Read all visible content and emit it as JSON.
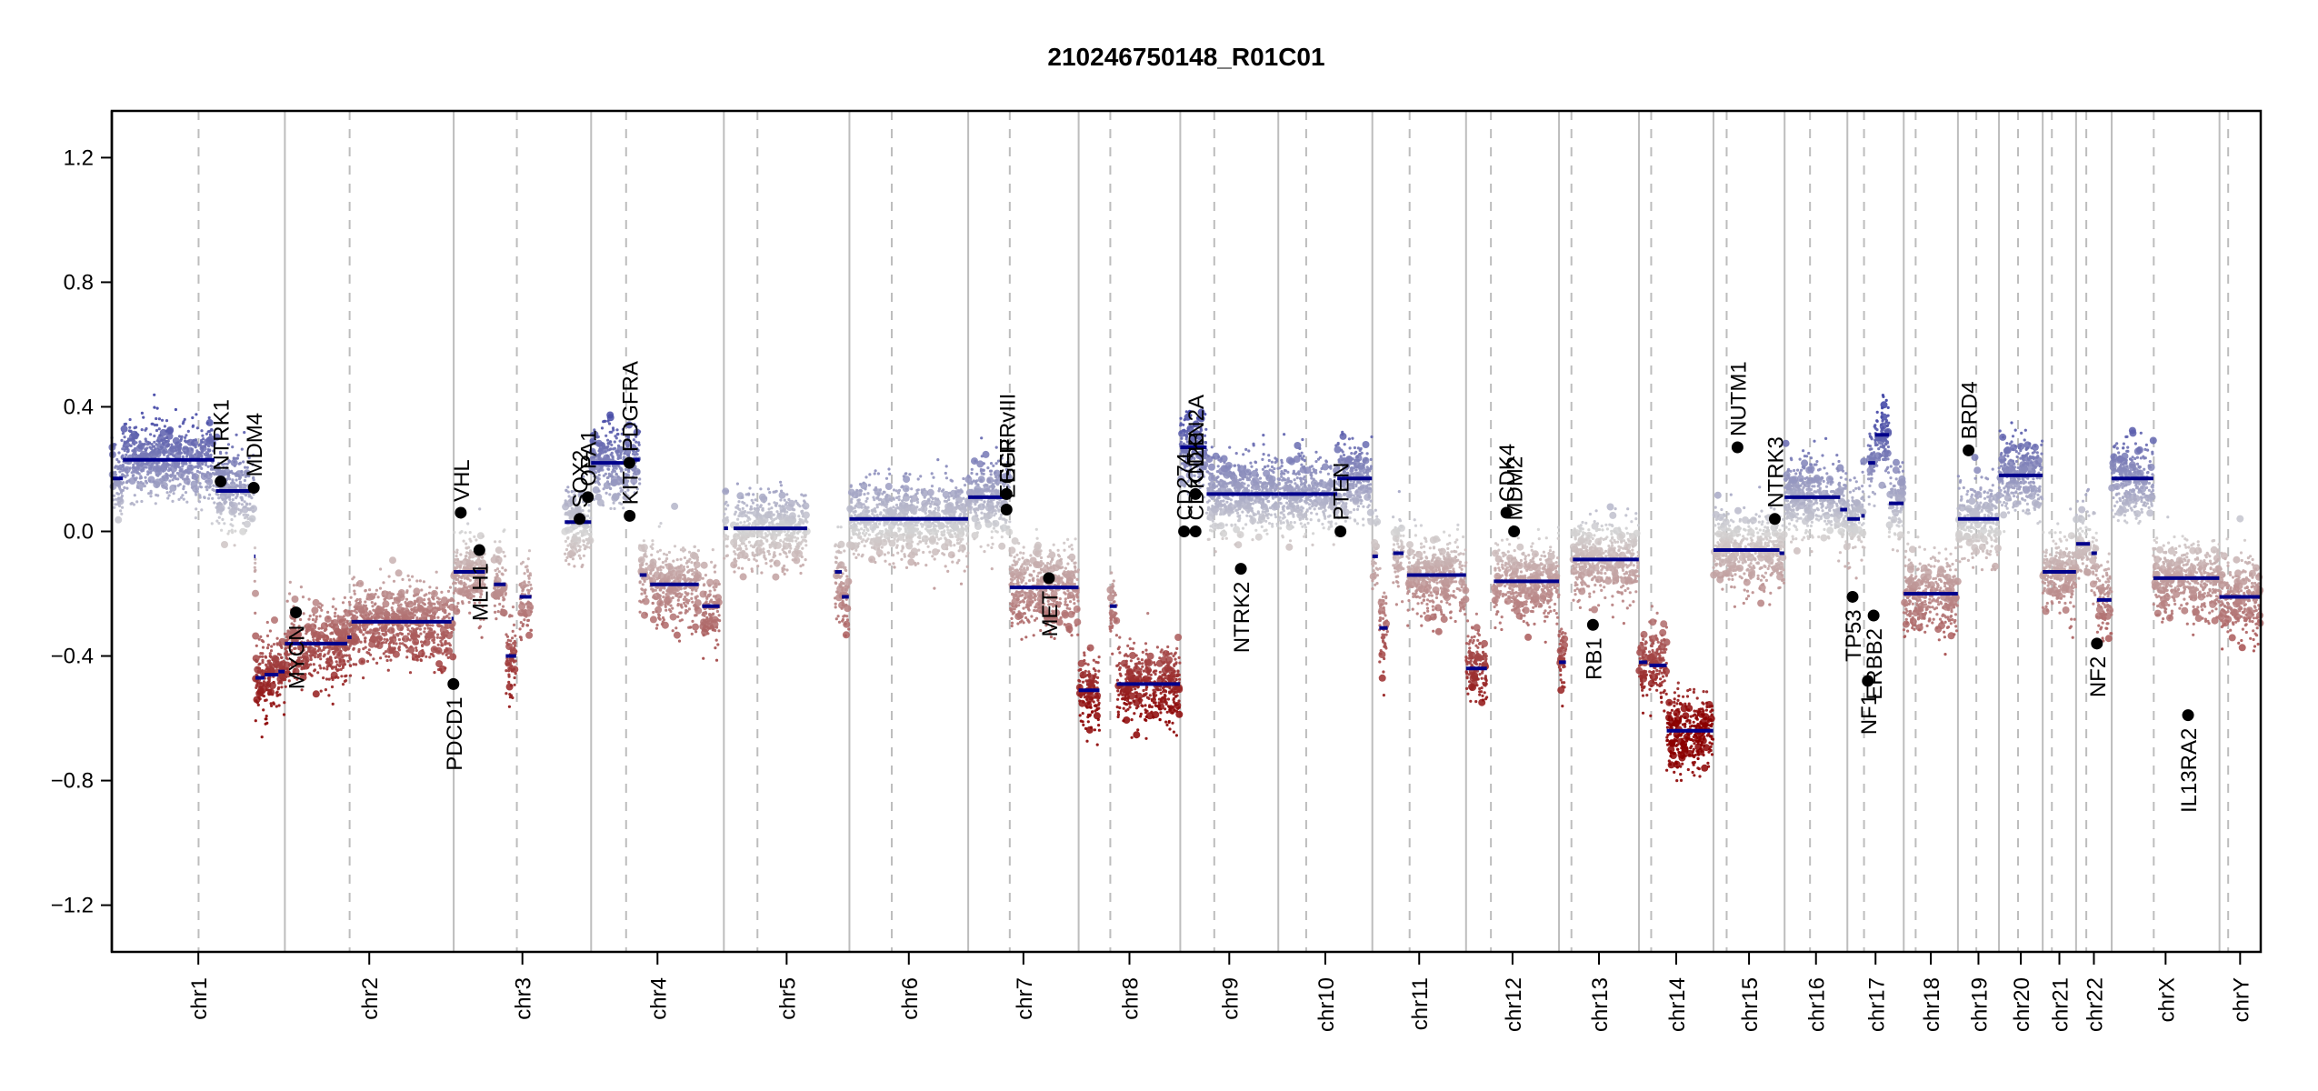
{
  "chart_data": {
    "type": "scatter",
    "title": "210246750148_R01C01",
    "xlabel": "",
    "ylabel": "",
    "ylim": [
      -1.35,
      1.35
    ],
    "yticks": [
      -1.2,
      -0.8,
      -0.4,
      0.0,
      0.4,
      0.8,
      1.2
    ],
    "ytick_labels": [
      "−1.2",
      "−0.8",
      "−0.4",
      "0.0",
      "0.4",
      "0.8",
      "1.2"
    ],
    "grid": false,
    "legend": "none",
    "colors": {
      "gain": "#3b3fa3",
      "neutral": "#d3d3d3",
      "loss": "#8b0000",
      "segment": "#00008b",
      "gene_marker": "#000000",
      "chrom_boundary": "#bdbdbd",
      "centromere": "#bdbdbd"
    },
    "chromosomes": [
      {
        "name": "chr1",
        "length": 249.3,
        "centromere": 125.0
      },
      {
        "name": "chr2",
        "length": 243.2,
        "centromere": 93.3
      },
      {
        "name": "chr3",
        "length": 198.0,
        "centromere": 91.0
      },
      {
        "name": "chr4",
        "length": 191.2,
        "centromere": 50.4
      },
      {
        "name": "chr5",
        "length": 180.9,
        "centromere": 48.4
      },
      {
        "name": "chr6",
        "length": 171.1,
        "centromere": 61.0
      },
      {
        "name": "chr7",
        "length": 159.1,
        "centromere": 59.9
      },
      {
        "name": "chr8",
        "length": 146.4,
        "centromere": 45.6
      },
      {
        "name": "chr9",
        "length": 141.2,
        "centromere": 49.0
      },
      {
        "name": "chr10",
        "length": 135.5,
        "centromere": 40.2
      },
      {
        "name": "chr11",
        "length": 135.0,
        "centromere": 53.7
      },
      {
        "name": "chr12",
        "length": 133.9,
        "centromere": 35.8
      },
      {
        "name": "chr13",
        "length": 115.2,
        "centromere": 17.9
      },
      {
        "name": "chr14",
        "length": 107.3,
        "centromere": 17.6
      },
      {
        "name": "chr15",
        "length": 102.5,
        "centromere": 19.0
      },
      {
        "name": "chr16",
        "length": 90.4,
        "centromere": 36.6
      },
      {
        "name": "chr17",
        "length": 81.2,
        "centromere": 24.0
      },
      {
        "name": "chr18",
        "length": 78.1,
        "centromere": 17.2
      },
      {
        "name": "chr19",
        "length": 59.1,
        "centromere": 26.5
      },
      {
        "name": "chr20",
        "length": 63.0,
        "centromere": 27.5
      },
      {
        "name": "chr21",
        "length": 48.1,
        "centromere": 13.2
      },
      {
        "name": "chr22",
        "length": 51.3,
        "centromere": 14.7
      },
      {
        "name": "chrX",
        "length": 155.3,
        "centromere": 60.6
      },
      {
        "name": "chrY",
        "length": 59.4,
        "centromere": 12.5
      }
    ],
    "segments": [
      {
        "chrom": "chr1",
        "start": 0,
        "end": 16,
        "value": 0.17
      },
      {
        "chrom": "chr1",
        "start": 16,
        "end": 148,
        "value": 0.23
      },
      {
        "chrom": "chr1",
        "start": 150,
        "end": 205,
        "value": 0.13
      },
      {
        "chrom": "chr1",
        "start": 205,
        "end": 207,
        "value": -0.08
      },
      {
        "chrom": "chr1",
        "start": 207,
        "end": 220,
        "value": -0.47
      },
      {
        "chrom": "chr1",
        "start": 220,
        "end": 240,
        "value": -0.46
      },
      {
        "chrom": "chr1",
        "start": 240,
        "end": 249,
        "value": -0.45
      },
      {
        "chrom": "chr2",
        "start": 0,
        "end": 90,
        "value": -0.36
      },
      {
        "chrom": "chr2",
        "start": 90,
        "end": 96,
        "value": -0.34
      },
      {
        "chrom": "chr2",
        "start": 96,
        "end": 240,
        "value": -0.29
      },
      {
        "chrom": "chr2",
        "start": 240,
        "end": 243,
        "value": -0.28
      },
      {
        "chrom": "chr3",
        "start": 0,
        "end": 45,
        "value": -0.13
      },
      {
        "chrom": "chr3",
        "start": 58,
        "end": 75,
        "value": -0.17
      },
      {
        "chrom": "chr3",
        "start": 75,
        "end": 90,
        "value": -0.4
      },
      {
        "chrom": "chr3",
        "start": 95,
        "end": 112,
        "value": -0.21
      },
      {
        "chrom": "chr3",
        "start": 160,
        "end": 198,
        "value": 0.03
      },
      {
        "chrom": "chr4",
        "start": 0,
        "end": 55,
        "value": 0.22
      },
      {
        "chrom": "chr4",
        "start": 60,
        "end": 70,
        "value": 0.23
      },
      {
        "chrom": "chr4",
        "start": 70,
        "end": 80,
        "value": -0.14
      },
      {
        "chrom": "chr4",
        "start": 85,
        "end": 155,
        "value": -0.17
      },
      {
        "chrom": "chr4",
        "start": 160,
        "end": 185,
        "value": -0.24
      },
      {
        "chrom": "chr5",
        "start": 0,
        "end": 6,
        "value": 0.01
      },
      {
        "chrom": "chr5",
        "start": 14,
        "end": 120,
        "value": 0.01
      },
      {
        "chrom": "chr5",
        "start": 160,
        "end": 170,
        "value": -0.13
      },
      {
        "chrom": "chr5",
        "start": 170,
        "end": 180,
        "value": -0.21
      },
      {
        "chrom": "chr6",
        "start": 0,
        "end": 171,
        "value": 0.04
      },
      {
        "chrom": "chr7",
        "start": 0,
        "end": 60,
        "value": 0.11
      },
      {
        "chrom": "chr7",
        "start": 60,
        "end": 159,
        "value": -0.18
      },
      {
        "chrom": "chr8",
        "start": 0,
        "end": 30,
        "value": -0.51
      },
      {
        "chrom": "chr8",
        "start": 45,
        "end": 55,
        "value": -0.24
      },
      {
        "chrom": "chr8",
        "start": 55,
        "end": 146,
        "value": -0.49
      },
      {
        "chrom": "chr9",
        "start": 0,
        "end": 38,
        "value": 0.27
      },
      {
        "chrom": "chr9",
        "start": 38,
        "end": 141,
        "value": 0.12
      },
      {
        "chrom": "chr10",
        "start": 0,
        "end": 85,
        "value": 0.12
      },
      {
        "chrom": "chr10",
        "start": 85,
        "end": 135,
        "value": 0.17
      },
      {
        "chrom": "chr11",
        "start": 0,
        "end": 8,
        "value": -0.08
      },
      {
        "chrom": "chr11",
        "start": 10,
        "end": 22,
        "value": -0.31
      },
      {
        "chrom": "chr11",
        "start": 30,
        "end": 45,
        "value": -0.07
      },
      {
        "chrom": "chr11",
        "start": 50,
        "end": 135,
        "value": -0.14
      },
      {
        "chrom": "chr12",
        "start": 0,
        "end": 30,
        "value": -0.44
      },
      {
        "chrom": "chr12",
        "start": 40,
        "end": 134,
        "value": -0.16
      },
      {
        "chrom": "chr13",
        "start": 0,
        "end": 10,
        "value": -0.42
      },
      {
        "chrom": "chr13",
        "start": 20,
        "end": 115,
        "value": -0.09
      },
      {
        "chrom": "chr14",
        "start": 0,
        "end": 12,
        "value": -0.42
      },
      {
        "chrom": "chr14",
        "start": 15,
        "end": 40,
        "value": -0.43
      },
      {
        "chrom": "chr14",
        "start": 40,
        "end": 107,
        "value": -0.64
      },
      {
        "chrom": "chr15",
        "start": 0,
        "end": 95,
        "value": -0.06
      },
      {
        "chrom": "chr15",
        "start": 95,
        "end": 102,
        "value": -0.07
      },
      {
        "chrom": "chr16",
        "start": 0,
        "end": 80,
        "value": 0.11
      },
      {
        "chrom": "chr16",
        "start": 80,
        "end": 90,
        "value": 0.07
      },
      {
        "chrom": "chr17",
        "start": 0,
        "end": 18,
        "value": 0.04
      },
      {
        "chrom": "chr17",
        "start": 20,
        "end": 25,
        "value": 0.05
      },
      {
        "chrom": "chr17",
        "start": 30,
        "end": 40,
        "value": 0.22
      },
      {
        "chrom": "chr17",
        "start": 40,
        "end": 60,
        "value": 0.31
      },
      {
        "chrom": "chr17",
        "start": 60,
        "end": 81,
        "value": 0.09
      },
      {
        "chrom": "chr18",
        "start": 0,
        "end": 78,
        "value": -0.2
      },
      {
        "chrom": "chr19",
        "start": 0,
        "end": 59,
        "value": 0.04
      },
      {
        "chrom": "chr20",
        "start": 0,
        "end": 63,
        "value": 0.18
      },
      {
        "chrom": "chr21",
        "start": 0,
        "end": 48,
        "value": -0.13
      },
      {
        "chrom": "chr22",
        "start": 0,
        "end": 20,
        "value": -0.04
      },
      {
        "chrom": "chr22",
        "start": 22,
        "end": 30,
        "value": -0.07
      },
      {
        "chrom": "chr22",
        "start": 30,
        "end": 51,
        "value": -0.22
      },
      {
        "chrom": "chrX",
        "start": 0,
        "end": 60,
        "value": 0.17
      },
      {
        "chrom": "chrX",
        "start": 60,
        "end": 155,
        "value": -0.15
      },
      {
        "chrom": "chrY",
        "start": 0,
        "end": 59,
        "value": -0.21
      }
    ],
    "genes": [
      {
        "gene": "NTRK1",
        "chrom": "chr1",
        "pos": 156.8,
        "value": 0.16
      },
      {
        "gene": "MDM4",
        "chrom": "chr1",
        "pos": 204.5,
        "value": 0.14
      },
      {
        "gene": "MYCN",
        "chrom": "chr2",
        "pos": 16.0,
        "value": -0.26
      },
      {
        "gene": "PDCD1",
        "chrom": "chr2",
        "pos": 242.8,
        "value": -0.49
      },
      {
        "gene": "VHL",
        "chrom": "chr3",
        "pos": 10.2,
        "value": 0.06
      },
      {
        "gene": "MLH1",
        "chrom": "chr3",
        "pos": 37.0,
        "value": -0.06
      },
      {
        "gene": "SOX2",
        "chrom": "chr3",
        "pos": 181.4,
        "value": 0.04
      },
      {
        "gene": "OPA1",
        "chrom": "chr3",
        "pos": 193.3,
        "value": 0.11
      },
      {
        "gene": "KIT",
        "chrom": "chr4",
        "pos": 55.5,
        "value": 0.05
      },
      {
        "gene": "PDGFRA",
        "chrom": "chr4",
        "pos": 55.1,
        "value": 0.22
      },
      {
        "gene": "EGFR",
        "chrom": "chr7",
        "pos": 55.2,
        "value": 0.07
      },
      {
        "gene": "EGFRvIII",
        "chrom": "chr7",
        "pos": 55.2,
        "value": 0.12
      },
      {
        "gene": "MET",
        "chrom": "chr7",
        "pos": 116.3,
        "value": -0.15
      },
      {
        "gene": "CD274",
        "chrom": "chr9",
        "pos": 5.5,
        "value": 0.0
      },
      {
        "gene": "CDKN2A",
        "chrom": "chr9",
        "pos": 21.9,
        "value": 0.12
      },
      {
        "gene": "CDKN2B",
        "chrom": "chr9",
        "pos": 22.0,
        "value": 0.0
      },
      {
        "gene": "NTRK2",
        "chrom": "chr9",
        "pos": 87.3,
        "value": -0.12
      },
      {
        "gene": "PTEN",
        "chrom": "chr10",
        "pos": 89.6,
        "value": 0.0
      },
      {
        "gene": "CDK4",
        "chrom": "chr12",
        "pos": 58.1,
        "value": 0.06
      },
      {
        "gene": "MDM2",
        "chrom": "chr12",
        "pos": 69.2,
        "value": 0.0
      },
      {
        "gene": "RB1",
        "chrom": "chr13",
        "pos": 48.9,
        "value": -0.3
      },
      {
        "gene": "NUTM1",
        "chrom": "chr15",
        "pos": 34.6,
        "value": 0.27
      },
      {
        "gene": "NTRK3",
        "chrom": "chr15",
        "pos": 88.4,
        "value": 0.04
      },
      {
        "gene": "TP53",
        "chrom": "chr17",
        "pos": 7.5,
        "value": -0.21
      },
      {
        "gene": "NF1",
        "chrom": "chr17",
        "pos": 29.5,
        "value": -0.48
      },
      {
        "gene": "ERBB2",
        "chrom": "chr17",
        "pos": 37.8,
        "value": -0.27
      },
      {
        "gene": "BRD4",
        "chrom": "chr19",
        "pos": 15.3,
        "value": 0.26
      },
      {
        "gene": "NF2",
        "chrom": "chr22",
        "pos": 30.0,
        "value": -0.36
      },
      {
        "gene": "IL13RA2",
        "chrom": "chrX",
        "pos": 110.0,
        "value": -0.59
      }
    ]
  }
}
